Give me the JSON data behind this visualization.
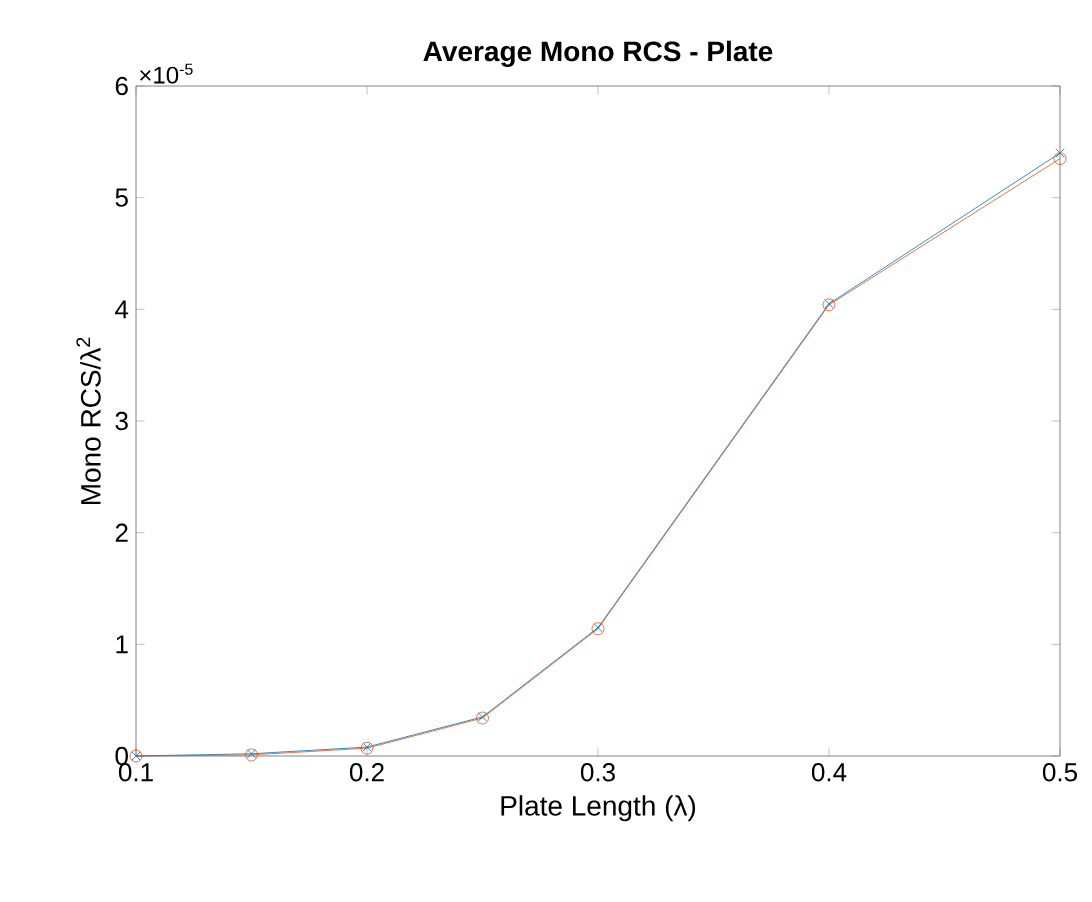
{
  "chart_data": {
    "type": "line",
    "title": "Average Mono RCS - Plate",
    "xlabel": "Plate Length (λ)",
    "ylabel": "Mono RCS/λ$^{2}$",
    "x": [
      0.1,
      0.15,
      0.2,
      0.25,
      0.3,
      0.4,
      0.5
    ],
    "series": [
      {
        "color": "#0072bd",
        "marker": "cross",
        "values": [
          0.0,
          0.02,
          0.08,
          0.35,
          1.15,
          4.05,
          5.4
        ]
      },
      {
        "color": "#d95319",
        "marker": "circle",
        "values": [
          0.0,
          0.01,
          0.07,
          0.34,
          1.14,
          4.04,
          5.35
        ]
      }
    ],
    "xlim": [
      0.1,
      0.5
    ],
    "ylim": [
      0,
      6
    ],
    "xticks": [
      0.1,
      0.2,
      0.3,
      0.4,
      0.5
    ],
    "yticks": [
      0,
      1,
      2,
      3,
      4,
      5,
      6
    ],
    "annotations": [
      "×10$^{-5}$"
    ],
    "grid": false,
    "line_style": "solid"
  }
}
